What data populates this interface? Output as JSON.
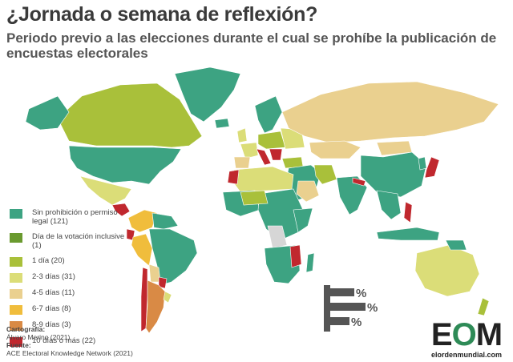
{
  "title": "¿Jornada o semana de reflexión?",
  "subtitle": "Periodo previo a las elecciones durante el cual se prohíbe la publicación de encuestas electorales",
  "colors": {
    "none": "#3da382",
    "election_day": "#6a9a2f",
    "d1": "#a9c03a",
    "d2_3": "#dbdd78",
    "d4_5": "#ead08f",
    "d6_7": "#f0bd3c",
    "d8_9": "#d98a45",
    "d10": "#c0282e",
    "nodata": "#d6d6d6",
    "border": "#ffffff"
  },
  "legend": [
    {
      "label": "Sin prohibición o permiso legal (121)",
      "color": "#3da382"
    },
    {
      "label": "Día de la votación inclusive (1)",
      "color": "#6a9a2f"
    },
    {
      "label": "1 día (20)",
      "color": "#a9c03a"
    },
    {
      "label": "2-3 días (31)",
      "color": "#dbdd78"
    },
    {
      "label": "4-5 días (11)",
      "color": "#ead08f"
    },
    {
      "label": "6-7 días (8)",
      "color": "#f0bd3c"
    },
    {
      "label": "8-9 días (3)",
      "color": "#d98a45"
    },
    {
      "label": "10 días o más (22)",
      "color": "#c0282e"
    }
  ],
  "credits": {
    "cartography_head": "Cartografía:",
    "cartography": "Álvaro Merino (2021)",
    "source_head": "Fuente:",
    "source": "ACE Electoral Knowledge Network (2021)"
  },
  "brand": {
    "mark_e": "E",
    "mark_o": "O",
    "mark_m": "M",
    "site": "elordenmundial.com"
  },
  "pct_logo": {
    "symbol": "%",
    "color": "#555555"
  }
}
